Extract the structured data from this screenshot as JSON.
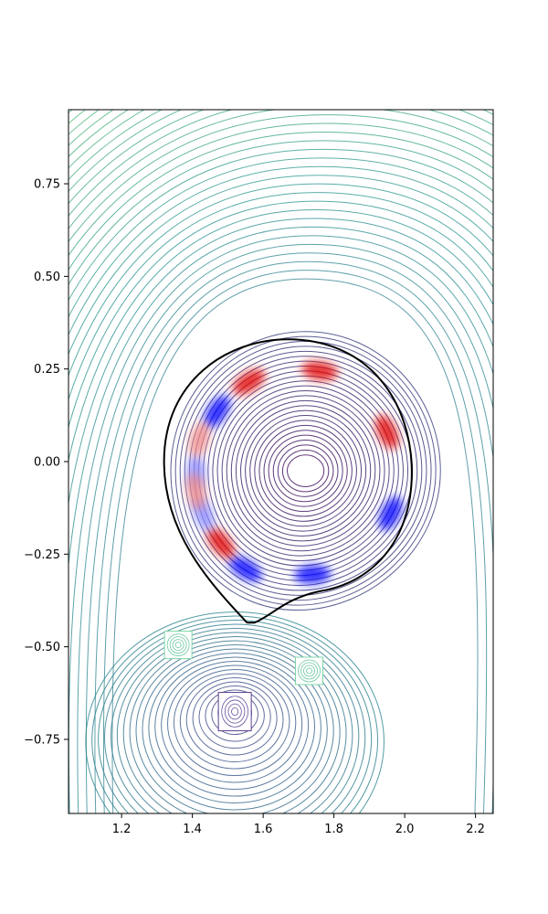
{
  "chart_data": {
    "type": "contour",
    "title": "",
    "xlabel": "",
    "ylabel": "",
    "xlim": [
      1.05,
      2.25
    ],
    "ylim": [
      -0.95,
      0.95
    ],
    "x_ticks": [
      "1.2",
      "1.4",
      "1.6",
      "1.8",
      "2.0",
      "2.2"
    ],
    "y_ticks": [
      "0.75",
      "0.50",
      "0.25",
      "0.00",
      "−0.25",
      "−0.50",
      "−0.75"
    ],
    "colormap": "viridis",
    "grid": false,
    "legend": "none",
    "magnetic_axis": {
      "R": 1.72,
      "Z": -0.025
    },
    "x_point": {
      "R": 1.575,
      "Z": -0.435
    },
    "separatrix_color": "#000000",
    "coils": [
      {
        "R": 1.36,
        "Z": -0.495
      },
      {
        "R": 1.73,
        "Z": -0.565
      },
      {
        "R": 1.52,
        "Z": -0.675
      }
    ],
    "perturbation_lobes": [
      {
        "R": 1.47,
        "Z": 0.135,
        "color": "#0000ff"
      },
      {
        "R": 1.56,
        "Z": 0.215,
        "color": "#e00000"
      },
      {
        "R": 1.76,
        "Z": 0.245,
        "color": "#e00000"
      },
      {
        "R": 1.95,
        "Z": 0.08,
        "color": "#e00000"
      },
      {
        "R": 1.96,
        "Z": -0.14,
        "color": "#0000ff"
      },
      {
        "R": 1.74,
        "Z": -0.305,
        "color": "#0000ff"
      },
      {
        "R": 1.55,
        "Z": -0.29,
        "color": "#0000ff"
      },
      {
        "R": 1.48,
        "Z": -0.22,
        "color": "#e00000"
      },
      {
        "R": 1.41,
        "Z": -0.03,
        "color": "#8888ff"
      },
      {
        "R": 1.43,
        "Z": -0.14,
        "color": "#8888ff"
      },
      {
        "R": 1.42,
        "Z": 0.06,
        "color": "#ee8888"
      },
      {
        "R": 1.41,
        "Z": -0.08,
        "color": "#ee8888"
      }
    ]
  }
}
